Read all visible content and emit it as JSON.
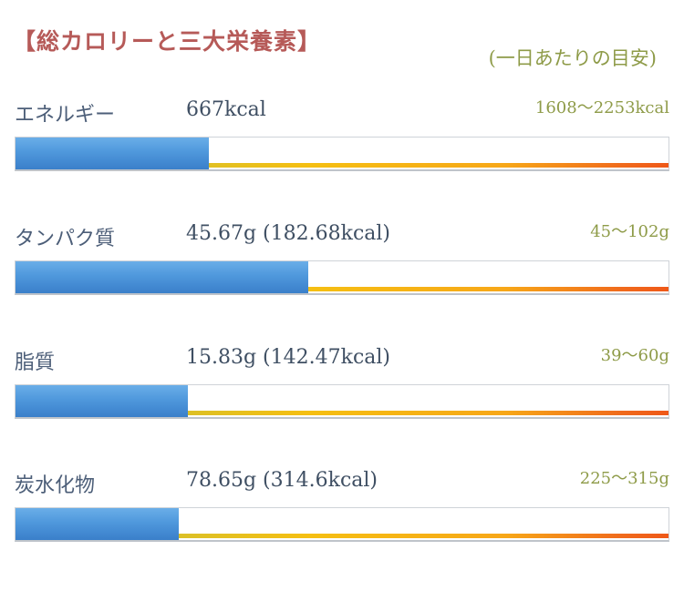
{
  "title": "【総カロリーと三大栄養素】",
  "subtitle": "(一日あたりの目安)",
  "chart_data": {
    "type": "bar",
    "orientation": "horizontal",
    "rows": [
      {
        "label": "エネルギー",
        "value_text": "667kcal",
        "range_text": "1608〜2253kcal",
        "fill": 0.296
      },
      {
        "label": "タンパク質",
        "value_text": "45.67g (182.68kcal)",
        "range_text": "45〜102g",
        "fill": 0.448
      },
      {
        "label": "脂質",
        "value_text": "15.83g (142.47kcal)",
        "range_text": "39〜60g",
        "fill": 0.264
      },
      {
        "label": "炭水化物",
        "value_text": "78.65g (314.6kcal)",
        "range_text": "225〜315g",
        "fill": 0.25
      }
    ]
  }
}
